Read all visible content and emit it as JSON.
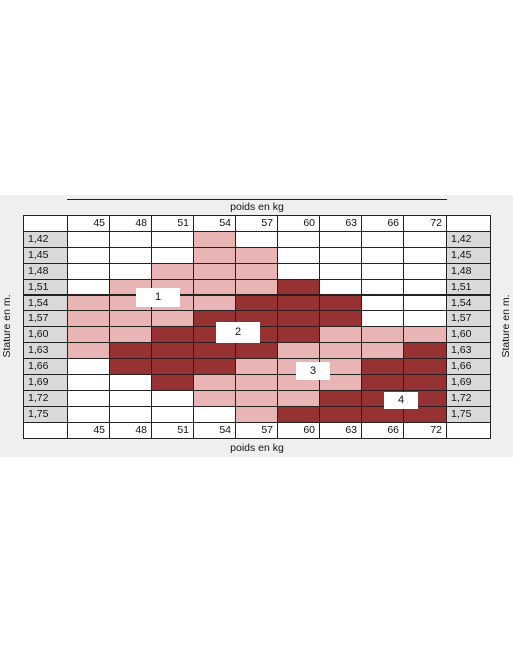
{
  "chart_data": {
    "type": "heatmap",
    "title": "",
    "xlabel": "poids en kg",
    "ylabel": "Stature en m.",
    "x": [
      "45",
      "48",
      "51",
      "54",
      "57",
      "60",
      "63",
      "66",
      "72"
    ],
    "y": [
      "1,42",
      "1,45",
      "1,48",
      "1,51",
      "1,54",
      "1,57",
      "1,60",
      "1,63",
      "1,66",
      "1,69",
      "1,72",
      "1,75"
    ],
    "legend": "none",
    "colors": {
      "empty": "#ffffff",
      "light": "#e8b4b4",
      "dark": "#983232",
      "label_bg": "#d9d9d9"
    },
    "cells": [
      [
        0,
        0,
        0,
        1,
        0,
        0,
        0,
        0,
        0
      ],
      [
        0,
        0,
        0,
        1,
        1,
        0,
        0,
        0,
        0
      ],
      [
        0,
        0,
        1,
        1,
        1,
        0,
        0,
        0,
        0
      ],
      [
        0,
        1,
        1,
        1,
        1,
        2,
        0,
        0,
        0
      ],
      [
        1,
        1,
        1,
        1,
        2,
        2,
        2,
        0,
        0
      ],
      [
        1,
        1,
        1,
        2,
        2,
        2,
        2,
        0,
        0
      ],
      [
        1,
        1,
        2,
        2,
        2,
        2,
        1,
        1,
        1
      ],
      [
        1,
        2,
        2,
        2,
        2,
        1,
        1,
        1,
        2
      ],
      [
        0,
        2,
        2,
        2,
        1,
        1,
        1,
        2,
        2
      ],
      [
        0,
        0,
        2,
        1,
        1,
        1,
        1,
        2,
        2
      ],
      [
        0,
        0,
        0,
        1,
        1,
        1,
        2,
        2,
        2
      ],
      [
        0,
        0,
        0,
        0,
        1,
        2,
        2,
        2,
        2
      ]
    ],
    "zone_labels": [
      "1",
      "2",
      "3",
      "4"
    ]
  }
}
